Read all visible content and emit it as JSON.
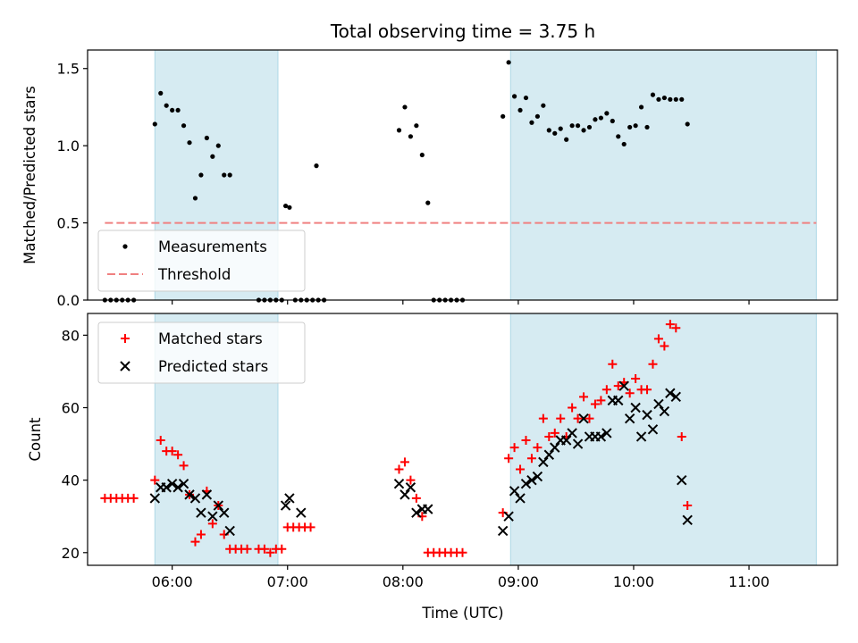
{
  "chart_data": [
    {
      "type": "scatter",
      "title": "Total observing time = 3.75 h",
      "ylabel": "Matched/Predicted stars",
      "xlabel": "",
      "xlim": [
        "05:16",
        "11:46"
      ],
      "ylim": [
        0,
        1.62
      ],
      "yticks": [
        0.0,
        0.5,
        1.0,
        1.5
      ],
      "ytick_labels": [
        "0.0",
        "0.5",
        "1.0",
        "1.5"
      ],
      "xticks": [
        "06:00",
        "07:00",
        "08:00",
        "09:00",
        "10:00",
        "11:00"
      ],
      "observing_windows": [
        [
          "05:51",
          "06:55"
        ],
        [
          "08:56",
          "11:35"
        ]
      ],
      "threshold": {
        "value": 0.5,
        "from": "05:25",
        "to": "11:35",
        "color": "#f08080"
      },
      "legend": {
        "position": "lower-left",
        "entries": [
          "Measurements",
          "Threshold"
        ]
      },
      "series": [
        {
          "name": "Measurements",
          "marker": "dot",
          "color": "#000000",
          "points": [
            [
              "05:25",
              0
            ],
            [
              "05:28",
              0
            ],
            [
              "05:31",
              0
            ],
            [
              "05:34",
              0
            ],
            [
              "05:37",
              0
            ],
            [
              "05:40",
              0
            ],
            [
              "05:51",
              1.14
            ],
            [
              "05:54",
              1.34
            ],
            [
              "05:57",
              1.26
            ],
            [
              "06:00",
              1.23
            ],
            [
              "06:03",
              1.23
            ],
            [
              "06:06",
              1.13
            ],
            [
              "06:09",
              1.02
            ],
            [
              "06:12",
              0.66
            ],
            [
              "06:15",
              0.81
            ],
            [
              "06:18",
              1.05
            ],
            [
              "06:21",
              0.93
            ],
            [
              "06:24",
              1.0
            ],
            [
              "06:27",
              0.81
            ],
            [
              "06:30",
              0.81
            ],
            [
              "06:45",
              0
            ],
            [
              "06:48",
              0
            ],
            [
              "06:51",
              0
            ],
            [
              "06:54",
              0
            ],
            [
              "06:57",
              0
            ],
            [
              "06:59",
              0.61
            ],
            [
              "07:01",
              0.6
            ],
            [
              "07:04",
              0
            ],
            [
              "07:07",
              0
            ],
            [
              "07:10",
              0
            ],
            [
              "07:13",
              0
            ],
            [
              "07:16",
              0
            ],
            [
              "07:19",
              0
            ],
            [
              "07:15",
              0.87
            ],
            [
              "07:58",
              1.1
            ],
            [
              "08:01",
              1.25
            ],
            [
              "08:04",
              1.06
            ],
            [
              "08:07",
              1.13
            ],
            [
              "08:10",
              0.94
            ],
            [
              "08:13",
              0.63
            ],
            [
              "08:16",
              0
            ],
            [
              "08:19",
              0
            ],
            [
              "08:22",
              0
            ],
            [
              "08:25",
              0
            ],
            [
              "08:28",
              0
            ],
            [
              "08:31",
              0
            ],
            [
              "08:52",
              1.19
            ],
            [
              "08:55",
              1.54
            ],
            [
              "08:58",
              1.32
            ],
            [
              "09:01",
              1.23
            ],
            [
              "09:04",
              1.31
            ],
            [
              "09:07",
              1.15
            ],
            [
              "09:10",
              1.19
            ],
            [
              "09:13",
              1.26
            ],
            [
              "09:16",
              1.1
            ],
            [
              "09:19",
              1.08
            ],
            [
              "09:22",
              1.11
            ],
            [
              "09:25",
              1.04
            ],
            [
              "09:28",
              1.13
            ],
            [
              "09:31",
              1.13
            ],
            [
              "09:34",
              1.1
            ],
            [
              "09:37",
              1.12
            ],
            [
              "09:40",
              1.17
            ],
            [
              "09:43",
              1.18
            ],
            [
              "09:46",
              1.21
            ],
            [
              "09:49",
              1.16
            ],
            [
              "09:52",
              1.06
            ],
            [
              "09:55",
              1.01
            ],
            [
              "09:58",
              1.12
            ],
            [
              "10:01",
              1.13
            ],
            [
              "10:04",
              1.25
            ],
            [
              "10:07",
              1.12
            ],
            [
              "10:10",
              1.33
            ],
            [
              "10:13",
              1.3
            ],
            [
              "10:16",
              1.31
            ],
            [
              "10:19",
              1.3
            ],
            [
              "10:22",
              1.3
            ],
            [
              "10:25",
              1.3
            ],
            [
              "10:28",
              1.14
            ]
          ]
        }
      ]
    },
    {
      "type": "scatter",
      "title": "",
      "ylabel": "Count",
      "xlabel": "Time (UTC)",
      "xlim": [
        "05:16",
        "11:46"
      ],
      "ylim": [
        16.5,
        86
      ],
      "yticks": [
        20,
        40,
        60,
        80
      ],
      "ytick_labels": [
        "20",
        "40",
        "60",
        "80"
      ],
      "xticks": [
        "06:00",
        "07:00",
        "08:00",
        "09:00",
        "10:00",
        "11:00"
      ],
      "xtick_labels": [
        "06:00",
        "07:00",
        "08:00",
        "09:00",
        "10:00",
        "11:00"
      ],
      "observing_windows": [
        [
          "05:51",
          "06:55"
        ],
        [
          "08:56",
          "11:35"
        ]
      ],
      "legend": {
        "position": "upper-left",
        "entries": [
          "Matched stars",
          "Predicted stars"
        ]
      },
      "series": [
        {
          "name": "Matched stars",
          "marker": "plus",
          "color": "#ff0000",
          "points": [
            [
              "05:25",
              35
            ],
            [
              "05:28",
              35
            ],
            [
              "05:31",
              35
            ],
            [
              "05:34",
              35
            ],
            [
              "05:37",
              35
            ],
            [
              "05:40",
              35
            ],
            [
              "05:51",
              40
            ],
            [
              "05:54",
              51
            ],
            [
              "05:57",
              48
            ],
            [
              "06:00",
              48
            ],
            [
              "06:03",
              47
            ],
            [
              "06:06",
              44
            ],
            [
              "06:09",
              36
            ],
            [
              "06:12",
              23
            ],
            [
              "06:15",
              25
            ],
            [
              "06:18",
              37
            ],
            [
              "06:21",
              28
            ],
            [
              "06:24",
              33
            ],
            [
              "06:27",
              25
            ],
            [
              "06:30",
              21
            ],
            [
              "06:33",
              21
            ],
            [
              "06:36",
              21
            ],
            [
              "06:39",
              21
            ],
            [
              "06:45",
              21
            ],
            [
              "06:48",
              21
            ],
            [
              "06:51",
              20
            ],
            [
              "06:54",
              21
            ],
            [
              "06:57",
              21
            ],
            [
              "07:00",
              27
            ],
            [
              "07:03",
              27
            ],
            [
              "07:06",
              27
            ],
            [
              "07:09",
              27
            ],
            [
              "07:12",
              27
            ],
            [
              "07:58",
              43
            ],
            [
              "08:01",
              45
            ],
            [
              "08:04",
              40
            ],
            [
              "08:07",
              35
            ],
            [
              "08:10",
              30
            ],
            [
              "08:13",
              20
            ],
            [
              "08:16",
              20
            ],
            [
              "08:19",
              20
            ],
            [
              "08:22",
              20
            ],
            [
              "08:25",
              20
            ],
            [
              "08:28",
              20
            ],
            [
              "08:31",
              20
            ],
            [
              "08:52",
              31
            ],
            [
              "08:55",
              46
            ],
            [
              "08:58",
              49
            ],
            [
              "09:01",
              43
            ],
            [
              "09:04",
              51
            ],
            [
              "09:07",
              46
            ],
            [
              "09:10",
              49
            ],
            [
              "09:13",
              57
            ],
            [
              "09:16",
              52
            ],
            [
              "09:19",
              53
            ],
            [
              "09:22",
              57
            ],
            [
              "09:25",
              52
            ],
            [
              "09:28",
              60
            ],
            [
              "09:31",
              57
            ],
            [
              "09:34",
              63
            ],
            [
              "09:37",
              57
            ],
            [
              "09:40",
              61
            ],
            [
              "09:43",
              62
            ],
            [
              "09:46",
              65
            ],
            [
              "09:49",
              72
            ],
            [
              "09:52",
              66
            ],
            [
              "09:55",
              67
            ],
            [
              "09:58",
              64
            ],
            [
              "10:01",
              68
            ],
            [
              "10:04",
              65
            ],
            [
              "10:07",
              65
            ],
            [
              "10:10",
              72
            ],
            [
              "10:13",
              79
            ],
            [
              "10:16",
              77
            ],
            [
              "10:19",
              83
            ],
            [
              "10:22",
              82
            ],
            [
              "10:25",
              52
            ],
            [
              "10:28",
              33
            ]
          ]
        },
        {
          "name": "Predicted stars",
          "marker": "cross",
          "color": "#000000",
          "points": [
            [
              "05:51",
              35
            ],
            [
              "05:54",
              38
            ],
            [
              "05:57",
              38
            ],
            [
              "06:00",
              39
            ],
            [
              "06:03",
              38
            ],
            [
              "06:06",
              39
            ],
            [
              "06:09",
              36
            ],
            [
              "06:12",
              35
            ],
            [
              "06:15",
              31
            ],
            [
              "06:18",
              36
            ],
            [
              "06:21",
              30
            ],
            [
              "06:24",
              33
            ],
            [
              "06:27",
              31
            ],
            [
              "06:30",
              26
            ],
            [
              "06:59",
              33
            ],
            [
              "07:01",
              35
            ],
            [
              "07:07",
              31
            ],
            [
              "07:58",
              39
            ],
            [
              "08:01",
              36
            ],
            [
              "08:04",
              38
            ],
            [
              "08:07",
              31
            ],
            [
              "08:10",
              32
            ],
            [
              "08:13",
              32
            ],
            [
              "08:52",
              26
            ],
            [
              "08:55",
              30
            ],
            [
              "08:58",
              37
            ],
            [
              "09:01",
              35
            ],
            [
              "09:04",
              39
            ],
            [
              "09:07",
              40
            ],
            [
              "09:10",
              41
            ],
            [
              "09:13",
              45
            ],
            [
              "09:16",
              47
            ],
            [
              "09:19",
              49
            ],
            [
              "09:22",
              51
            ],
            [
              "09:25",
              51
            ],
            [
              "09:28",
              53
            ],
            [
              "09:31",
              50
            ],
            [
              "09:34",
              57
            ],
            [
              "09:37",
              52
            ],
            [
              "09:40",
              52
            ],
            [
              "09:43",
              52
            ],
            [
              "09:46",
              53
            ],
            [
              "09:49",
              62
            ],
            [
              "09:52",
              62
            ],
            [
              "09:55",
              66
            ],
            [
              "09:58",
              57
            ],
            [
              "10:01",
              60
            ],
            [
              "10:04",
              52
            ],
            [
              "10:07",
              58
            ],
            [
              "10:10",
              54
            ],
            [
              "10:13",
              61
            ],
            [
              "10:16",
              59
            ],
            [
              "10:19",
              64
            ],
            [
              "10:22",
              63
            ],
            [
              "10:25",
              40
            ],
            [
              "10:28",
              29
            ]
          ]
        }
      ]
    }
  ]
}
